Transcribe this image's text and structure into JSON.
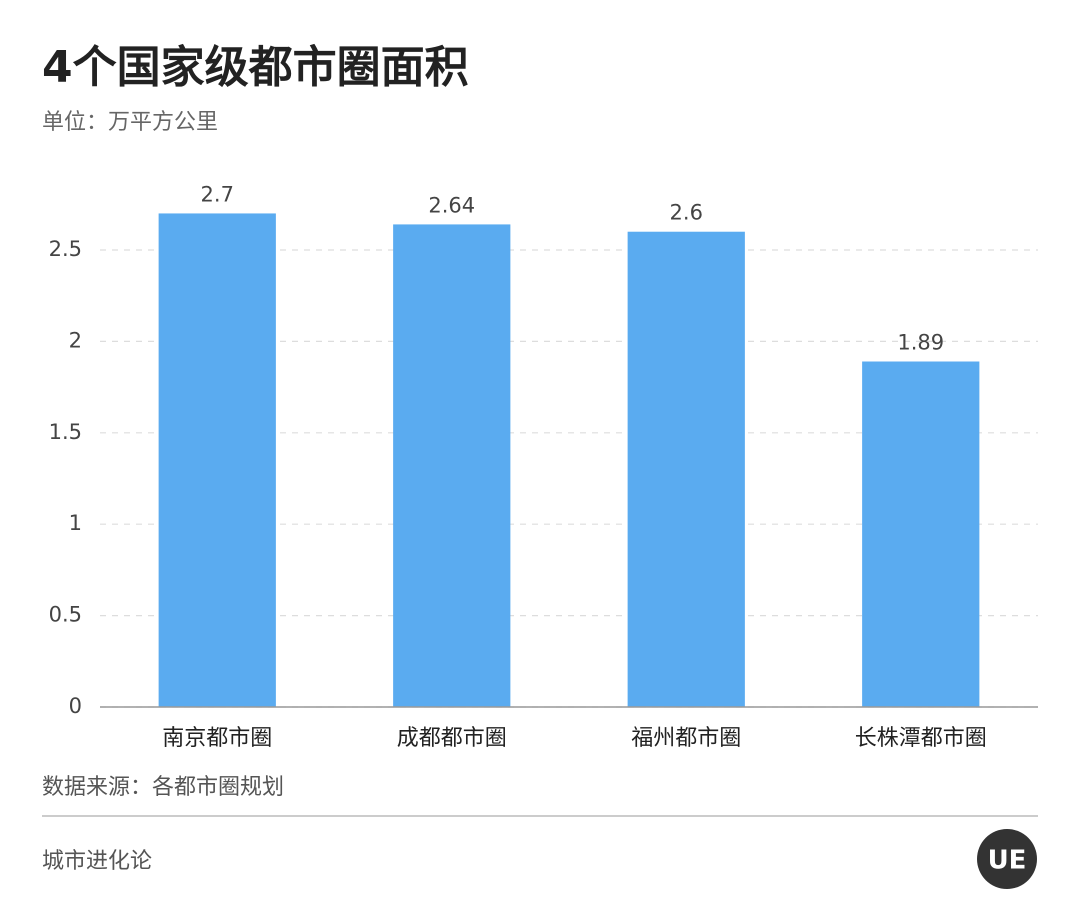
{
  "chart_data": {
    "type": "bar",
    "title": "4个国家级都市圈面积",
    "subtitle": "单位：万平方公里",
    "categories": [
      "南京都市圈",
      "成都都市圈",
      "福州都市圈",
      "长株潭都市圈"
    ],
    "values": [
      2.7,
      2.64,
      2.6,
      1.89
    ],
    "color": "#5aabf0",
    "ylim": [
      0,
      3
    ],
    "yticks": [
      0,
      0.5,
      1,
      1.5,
      2,
      2.5
    ],
    "grid": true,
    "source": "数据来源：各都市圈规划"
  },
  "footer": {
    "brand": "城市进化论",
    "logo": "UE"
  }
}
